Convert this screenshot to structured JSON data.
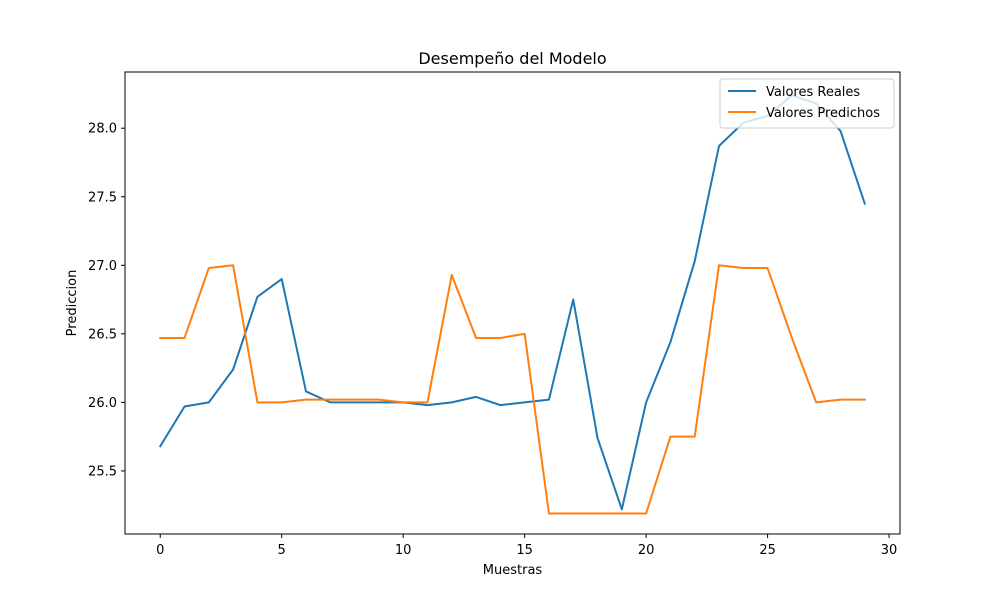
{
  "chart_data": {
    "type": "line",
    "title": "Desempeño del Modelo",
    "xlabel": "Muestras",
    "ylabel": "Prediccion",
    "xlim": [
      -1.45,
      30.45
    ],
    "ylim": [
      25.04,
      28.41
    ],
    "x_ticks": [
      0,
      5,
      10,
      15,
      20,
      25,
      30
    ],
    "x_tick_labels": [
      "0",
      "5",
      "10",
      "15",
      "20",
      "25",
      "30"
    ],
    "y_ticks": [
      25.5,
      26.0,
      26.5,
      27.0,
      27.5,
      28.0
    ],
    "y_tick_labels": [
      "25.5",
      "26.0",
      "26.5",
      "27.0",
      "27.5",
      "28.0"
    ],
    "grid": false,
    "legend_position": "top-right",
    "x": [
      0,
      1,
      2,
      3,
      4,
      5,
      6,
      7,
      8,
      9,
      10,
      11,
      12,
      13,
      14,
      15,
      16,
      17,
      18,
      19,
      20,
      21,
      22,
      23,
      24,
      25,
      26,
      27,
      28,
      29
    ],
    "series": [
      {
        "name": "Valores Reales",
        "color": "#1f77b4",
        "values": [
          25.68,
          25.97,
          26.0,
          26.24,
          26.77,
          26.9,
          26.08,
          26.0,
          26.0,
          26.0,
          26.0,
          25.98,
          26.0,
          26.04,
          25.98,
          26.0,
          26.02,
          26.75,
          25.74,
          25.22,
          26.0,
          26.44,
          27.03,
          27.87,
          28.04,
          28.09,
          28.24,
          28.18,
          27.98,
          27.45
        ]
      },
      {
        "name": "Valores Predichos",
        "color": "#ff7f0e",
        "values": [
          26.47,
          26.47,
          26.98,
          27.0,
          26.0,
          26.0,
          26.02,
          26.02,
          26.02,
          26.02,
          26.0,
          26.0,
          26.93,
          26.47,
          26.47,
          26.5,
          25.19,
          25.19,
          25.19,
          25.19,
          25.19,
          25.75,
          25.75,
          27.0,
          26.98,
          26.98,
          26.47,
          26.0,
          26.02,
          26.02
        ]
      }
    ]
  }
}
